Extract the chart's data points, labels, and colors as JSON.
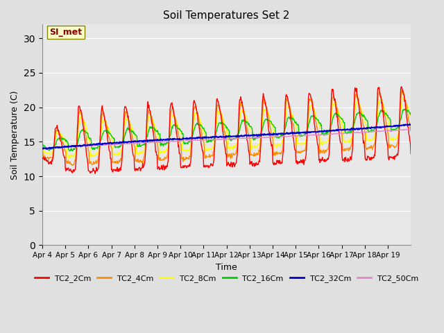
{
  "title": "Soil Temperatures Set 2",
  "xlabel": "Time",
  "ylabel": "Soil Temperature (C)",
  "ylim": [
    0,
    32
  ],
  "yticks": [
    0,
    5,
    10,
    15,
    20,
    25,
    30
  ],
  "background_color": "#e0e0e0",
  "plot_bg_color": "#e8e8e8",
  "annotation_text": "SI_met",
  "annotation_color": "#8b0000",
  "annotation_bg": "#ffffcc",
  "series_colors": {
    "TC2_2Cm": "#ff0000",
    "TC2_4Cm": "#ff8c00",
    "TC2_8Cm": "#ffff00",
    "TC2_16Cm": "#00cc00",
    "TC2_32Cm": "#0000cc",
    "TC2_50Cm": "#dd88cc"
  },
  "x_tick_labels": [
    "Apr 4",
    "Apr 5",
    "Apr 6",
    "Apr 7",
    "Apr 8",
    "Apr 9",
    "Apr 10",
    "Apr 11",
    "Apr 12",
    "Apr 13",
    "Apr 14",
    "Apr 15",
    "Apr 16",
    "Apr 17",
    "Apr 18",
    "Apr 19"
  ],
  "line_width": 1.0,
  "font_size": 9,
  "title_font_size": 11
}
